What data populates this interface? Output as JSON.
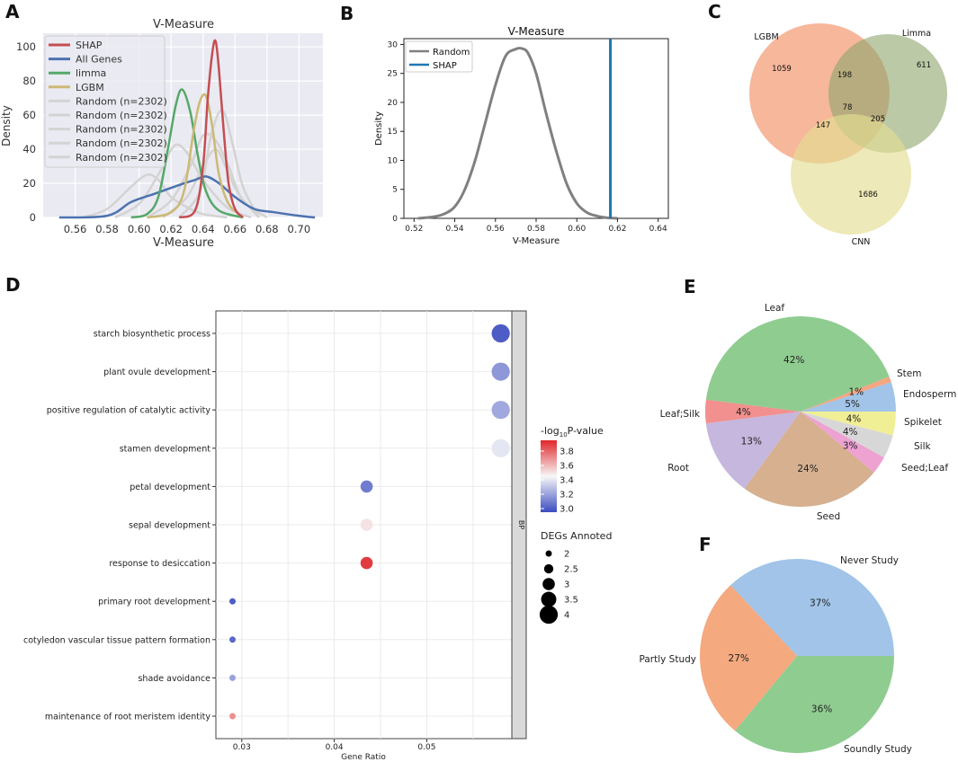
{
  "panels": {
    "A": "A",
    "B": "B",
    "C": "C",
    "D": "D",
    "E": "E",
    "F": "F"
  },
  "chart_data": [
    {
      "id": "A",
      "type": "line",
      "title": "V-Measure",
      "xlabel": "V-Measure",
      "ylabel": "Density",
      "xlim": [
        0.54,
        0.715
      ],
      "ylim": [
        0,
        108
      ],
      "xticks": [
        0.56,
        0.58,
        0.6,
        0.62,
        0.64,
        0.66,
        0.68,
        0.7
      ],
      "xtick_labels": [
        "0.56",
        "0.58",
        "0.60",
        "0.62",
        "0.64",
        "0.66",
        "0.68",
        "0.70"
      ],
      "yticks": [
        0,
        20,
        40,
        60,
        80,
        100
      ],
      "ytick_labels": [
        "0",
        "20",
        "40",
        "60",
        "80",
        "100"
      ],
      "grid": true,
      "legend_position": "upper-left",
      "series": [
        {
          "name": "Random (n=2302)",
          "color": "#d3d3d3",
          "x": [
            0.565,
            0.58,
            0.595,
            0.605,
            0.612,
            0.62,
            0.63,
            0.64,
            0.655
          ],
          "y": [
            0,
            5,
            18,
            25,
            22,
            12,
            6,
            2,
            0
          ]
        },
        {
          "name": "Random (n=2302)",
          "color": "#d3d3d3",
          "x": [
            0.585,
            0.6,
            0.612,
            0.622,
            0.63,
            0.64,
            0.655,
            0.67
          ],
          "y": [
            0,
            8,
            25,
            42,
            38,
            22,
            6,
            0
          ]
        },
        {
          "name": "Random (n=2302)",
          "color": "#d3d3d3",
          "x": [
            0.605,
            0.62,
            0.632,
            0.64,
            0.648,
            0.656,
            0.665,
            0.68
          ],
          "y": [
            0,
            10,
            30,
            48,
            45,
            30,
            10,
            0
          ]
        },
        {
          "name": "Random (n=2302)",
          "color": "#d3d3d3",
          "x": [
            0.625,
            0.638,
            0.645,
            0.652,
            0.658,
            0.665,
            0.675
          ],
          "y": [
            0,
            15,
            48,
            63,
            45,
            18,
            0
          ]
        },
        {
          "name": "Random (n=2302)",
          "color": "#d3d3d3",
          "x": [
            0.615,
            0.63,
            0.64,
            0.648,
            0.655,
            0.662,
            0.675
          ],
          "y": [
            0,
            12,
            30,
            40,
            28,
            14,
            0
          ]
        },
        {
          "name": "All Genes",
          "color": "#4c72b0",
          "x": [
            0.55,
            0.58,
            0.595,
            0.61,
            0.625,
            0.635,
            0.642,
            0.65,
            0.66,
            0.672,
            0.685,
            0.7,
            0.71
          ],
          "y": [
            0,
            1,
            9,
            14,
            19,
            22,
            24,
            20,
            12,
            5,
            3,
            1,
            0
          ]
        },
        {
          "name": "limma",
          "color": "#55a868",
          "x": [
            0.595,
            0.605,
            0.612,
            0.618,
            0.623,
            0.627,
            0.632,
            0.637,
            0.642,
            0.65,
            0.665
          ],
          "y": [
            0,
            2,
            12,
            40,
            66,
            75,
            62,
            35,
            15,
            4,
            0
          ]
        },
        {
          "name": "LGBM",
          "color": "#ccb974",
          "x": [
            0.605,
            0.62,
            0.628,
            0.634,
            0.638,
            0.642,
            0.646,
            0.65,
            0.656,
            0.665
          ],
          "y": [
            0,
            3,
            15,
            50,
            68,
            71,
            52,
            25,
            8,
            0
          ]
        },
        {
          "name": "SHAP",
          "color": "#c44e52",
          "x": [
            0.625,
            0.635,
            0.64,
            0.643,
            0.646,
            0.648,
            0.65,
            0.653,
            0.656,
            0.66,
            0.665
          ],
          "y": [
            0,
            4,
            30,
            70,
            98,
            103,
            86,
            50,
            20,
            5,
            0
          ]
        }
      ],
      "legend": [
        {
          "name": "SHAP",
          "color": "#c44e52"
        },
        {
          "name": "All Genes",
          "color": "#4c72b0"
        },
        {
          "name": "limma",
          "color": "#55a868"
        },
        {
          "name": "LGBM",
          "color": "#ccb974"
        },
        {
          "name": "Random (n=2302)",
          "color": "#d3d3d3"
        },
        {
          "name": "Random (n=2302)",
          "color": "#d3d3d3"
        },
        {
          "name": "Random (n=2302)",
          "color": "#d3d3d3"
        },
        {
          "name": "Random (n=2302)",
          "color": "#d3d3d3"
        },
        {
          "name": "Random (n=2302)",
          "color": "#d3d3d3"
        }
      ]
    },
    {
      "id": "B",
      "type": "line",
      "title": "V-Measure",
      "xlabel": "V-Measure",
      "ylabel": "Density",
      "xlim": [
        0.515,
        0.645
      ],
      "ylim": [
        0,
        31
      ],
      "xticks": [
        0.52,
        0.54,
        0.56,
        0.58,
        0.6,
        0.62,
        0.64
      ],
      "xtick_labels": [
        "0.52",
        "0.54",
        "0.56",
        "0.58",
        "0.60",
        "0.62",
        "0.64"
      ],
      "yticks": [
        0,
        5,
        10,
        15,
        20,
        25,
        30
      ],
      "ytick_labels": [
        "0",
        "5",
        "10",
        "15",
        "20",
        "25",
        "30"
      ],
      "legend_position": "upper-left",
      "series": [
        {
          "name": "Random",
          "color": "#808080",
          "x": [
            0.522,
            0.53,
            0.535,
            0.54,
            0.545,
            0.55,
            0.555,
            0.56,
            0.565,
            0.57,
            0.573,
            0.576,
            0.58,
            0.585,
            0.59,
            0.595,
            0.6,
            0.605,
            0.61,
            0.615,
            0.62
          ],
          "y": [
            0,
            0.3,
            0.8,
            2,
            5,
            10,
            16.5,
            23,
            28,
            29.2,
            29.3,
            28.5,
            25,
            18,
            11.5,
            6,
            2.6,
            1,
            0.4,
            0.1,
            0
          ]
        },
        {
          "name": "SHAP",
          "color": "#1f77b4",
          "x": [
            0.6165,
            0.6165
          ],
          "y": [
            0,
            31
          ]
        }
      ]
    },
    {
      "id": "C",
      "type": "venn",
      "sets": [
        {
          "name": "LGBM",
          "color": "#f4a582"
        },
        {
          "name": "Limma",
          "color": "#8ea56c"
        },
        {
          "name": "CNN",
          "color": "#e3dd92"
        }
      ],
      "regions": [
        {
          "sets": [
            "LGBM"
          ],
          "value": 1059
        },
        {
          "sets": [
            "Limma"
          ],
          "value": 611
        },
        {
          "sets": [
            "CNN"
          ],
          "value": 1686
        },
        {
          "sets": [
            "LGBM",
            "Limma"
          ],
          "value": 198
        },
        {
          "sets": [
            "LGBM",
            "CNN"
          ],
          "value": 147
        },
        {
          "sets": [
            "Limma",
            "CNN"
          ],
          "value": 205
        },
        {
          "sets": [
            "LGBM",
            "Limma",
            "CNN"
          ],
          "value": 78
        }
      ]
    },
    {
      "id": "D",
      "type": "scatter",
      "xlabel": "Gene Ratio",
      "facet_label": "BP",
      "xlim": [
        0.0272,
        0.0592
      ],
      "xticks": [
        0.03,
        0.04,
        0.05
      ],
      "xtick_labels": [
        "0.03",
        "0.04",
        "0.05"
      ],
      "categories": [
        "starch biosynthetic process",
        "plant ovule development",
        "positive regulation of catalytic activity",
        "stamen development",
        "petal development",
        "sepal development",
        "response to desiccation",
        "primary root development",
        "cotyledon vascular tissue pattern formation",
        "shade avoidance",
        "maintenance of root meristem identity"
      ],
      "points": [
        {
          "term": "starch biosynthetic process",
          "gene_ratio": 0.058,
          "neg_log10_p": 3.0,
          "count": 4
        },
        {
          "term": "plant ovule development",
          "gene_ratio": 0.058,
          "neg_log10_p": 3.17,
          "count": 4
        },
        {
          "term": "positive regulation of catalytic activity",
          "gene_ratio": 0.058,
          "neg_log10_p": 3.22,
          "count": 4
        },
        {
          "term": "stamen development",
          "gene_ratio": 0.058,
          "neg_log10_p": 3.4,
          "count": 4
        },
        {
          "term": "petal development",
          "gene_ratio": 0.0435,
          "neg_log10_p": 3.09,
          "count": 3
        },
        {
          "term": "sepal development",
          "gene_ratio": 0.0435,
          "neg_log10_p": 3.5,
          "count": 3
        },
        {
          "term": "response to desiccation",
          "gene_ratio": 0.0435,
          "neg_log10_p": 3.9,
          "count": 3
        },
        {
          "term": "primary root development",
          "gene_ratio": 0.029,
          "neg_log10_p": 3.0,
          "count": 2
        },
        {
          "term": "cotyledon vascular tissue pattern formation",
          "gene_ratio": 0.029,
          "neg_log10_p": 3.03,
          "count": 2
        },
        {
          "term": "shade avoidance",
          "gene_ratio": 0.029,
          "neg_log10_p": 3.2,
          "count": 2
        },
        {
          "term": "maintenance of root meristem identity",
          "gene_ratio": 0.029,
          "neg_log10_p": 3.7,
          "count": 2
        }
      ],
      "color_legend": {
        "title_prefix": "-log",
        "title_sub": "10",
        "title_suffix": "P-value",
        "min": 2.95,
        "max": 3.95,
        "ticks": [
          3.8,
          3.6,
          3.4,
          3.2,
          3.0
        ],
        "tick_labels": [
          "3.8",
          "3.6",
          "3.4",
          "3.2",
          "3.0"
        ],
        "low_color": "#3b4cc0",
        "mid_color": "#f7f7f7",
        "high_color": "#e0262a"
      },
      "size_legend": {
        "title": "DEGs Annoted",
        "values": [
          2,
          2.5,
          3,
          3.5,
          4
        ],
        "labels": [
          "2",
          "2.5",
          "3",
          "3.5",
          "4"
        ]
      }
    },
    {
      "id": "E",
      "type": "pie",
      "slices": [
        {
          "label": "Endosperm",
          "pct": 5,
          "pct_label": "5%",
          "color": "#a1c4e8"
        },
        {
          "label": "Stem",
          "pct": 1,
          "pct_label": "1%",
          "color": "#f4a582"
        },
        {
          "label": "Leaf",
          "pct": 42,
          "pct_label": "42%",
          "color": "#8fcc90"
        },
        {
          "label": "Leaf;Silk",
          "pct": 4,
          "pct_label": "4%",
          "color": "#f1908e"
        },
        {
          "label": "Root",
          "pct": 13,
          "pct_label": "13%",
          "color": "#c5b7dd"
        },
        {
          "label": "Seed",
          "pct": 24,
          "pct_label": "24%",
          "color": "#d6b08f"
        },
        {
          "label": "Seed;Leaf",
          "pct": 3,
          "pct_label": "3%",
          "color": "#eda2d2"
        },
        {
          "label": "Silk",
          "pct": 4,
          "pct_label": "4%",
          "color": "#d7d7d7"
        },
        {
          "label": "Spikelet",
          "pct": 4,
          "pct_label": "4%",
          "color": "#f1ef96"
        }
      ]
    },
    {
      "id": "F",
      "type": "pie",
      "slices": [
        {
          "label": "Never Study",
          "pct": 37,
          "pct_label": "37%",
          "color": "#a1c4e8"
        },
        {
          "label": "Partly Study",
          "pct": 27,
          "pct_label": "27%",
          "color": "#f4a97f"
        },
        {
          "label": "Soundly Study",
          "pct": 36,
          "pct_label": "36%",
          "color": "#8fcc90"
        }
      ]
    }
  ]
}
